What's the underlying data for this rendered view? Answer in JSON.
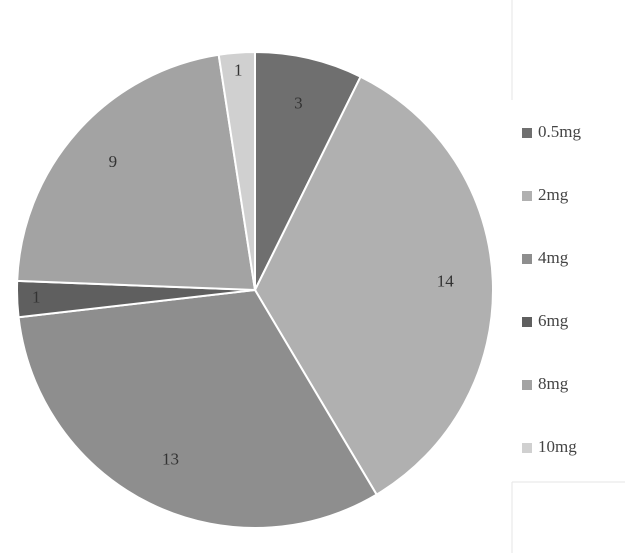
{
  "chart_data": {
    "type": "pie",
    "title": "",
    "categories": [
      "0.5mg",
      "2mg",
      "4mg",
      "6mg",
      "8mg",
      "10mg"
    ],
    "values": [
      3,
      14,
      13,
      1,
      9,
      1
    ],
    "colors": [
      "#6f6f6f",
      "#b0b0b0",
      "#8e8e8e",
      "#5f5f5f",
      "#a3a3a3",
      "#d0d0d0"
    ],
    "data_labels": [
      "3",
      "14",
      "13",
      "1",
      "9",
      "1"
    ],
    "legend": {
      "placement": "right",
      "entries": [
        "0.5mg",
        "2mg",
        "4mg",
        "6mg",
        "8mg",
        "10mg"
      ]
    },
    "slice_border_color": "#ffffff"
  }
}
